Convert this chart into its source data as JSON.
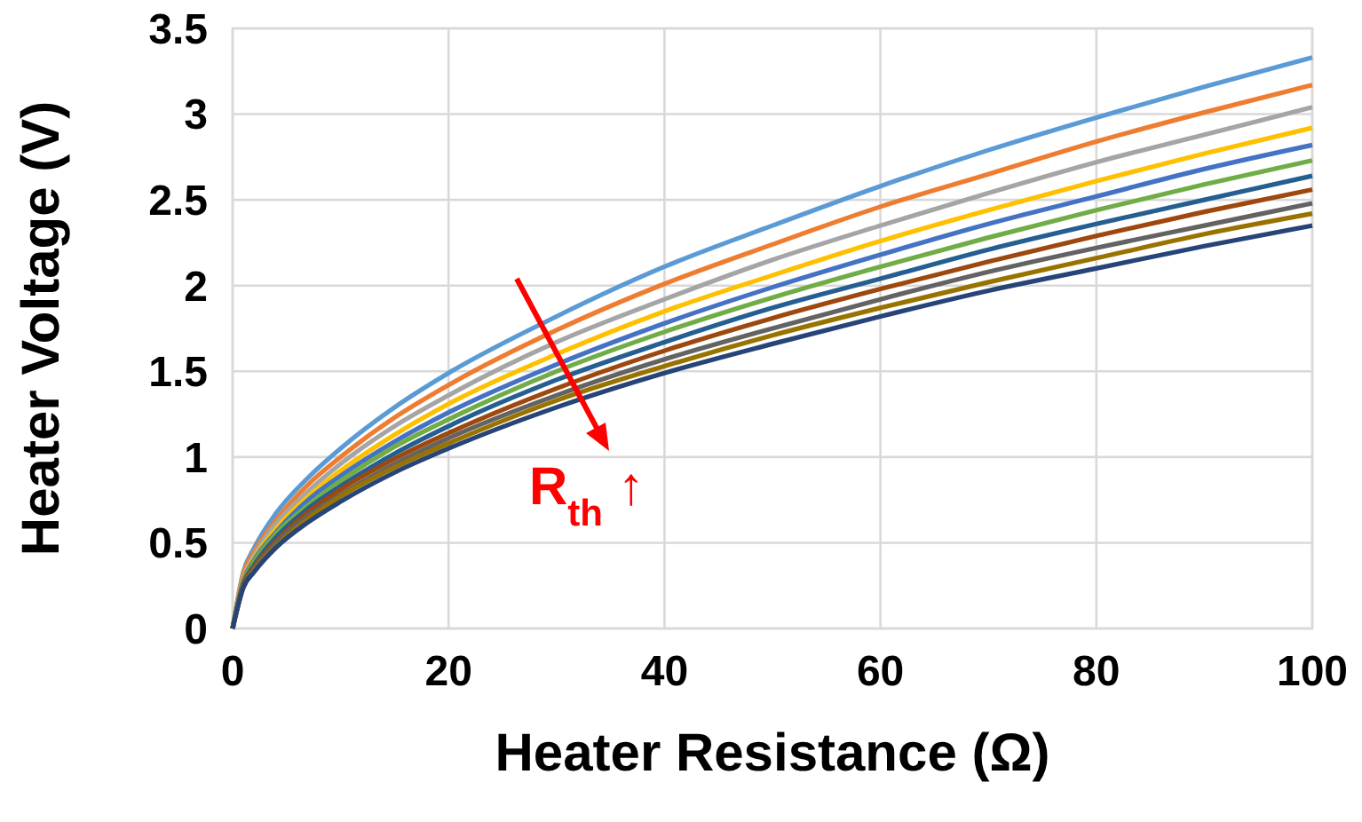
{
  "chart_data": {
    "type": "line",
    "xlabel": "Heater Resistance (Ω)",
    "ylabel": "Heater Voltage (V)",
    "x": [
      0,
      1,
      2,
      4,
      7,
      10,
      15,
      20,
      30,
      40,
      50,
      60,
      70,
      80,
      90,
      100
    ],
    "series": [
      {
        "color": "#5b9bd5",
        "values": [
          0,
          0.33,
          0.47,
          0.67,
          0.88,
          1.05,
          1.29,
          1.49,
          1.82,
          2.11,
          2.35,
          2.58,
          2.79,
          2.98,
          3.16,
          3.33
        ]
      },
      {
        "color": "#ed7d31",
        "values": [
          0,
          0.32,
          0.45,
          0.63,
          0.84,
          1.0,
          1.23,
          1.42,
          1.74,
          2.01,
          2.24,
          2.46,
          2.65,
          2.84,
          3.01,
          3.17
        ]
      },
      {
        "color": "#a5a5a5",
        "values": [
          0,
          0.3,
          0.43,
          0.61,
          0.8,
          0.96,
          1.18,
          1.36,
          1.67,
          1.92,
          2.15,
          2.35,
          2.54,
          2.72,
          2.88,
          3.04
        ]
      },
      {
        "color": "#ffc000",
        "values": [
          0,
          0.29,
          0.41,
          0.58,
          0.77,
          0.92,
          1.13,
          1.31,
          1.6,
          1.85,
          2.06,
          2.26,
          2.44,
          2.61,
          2.77,
          2.92
        ]
      },
      {
        "color": "#4472c4",
        "values": [
          0,
          0.28,
          0.4,
          0.56,
          0.75,
          0.89,
          1.09,
          1.26,
          1.54,
          1.78,
          1.99,
          2.18,
          2.36,
          2.52,
          2.68,
          2.82
        ]
      },
      {
        "color": "#70ad47",
        "values": [
          0,
          0.27,
          0.39,
          0.55,
          0.72,
          0.86,
          1.06,
          1.22,
          1.5,
          1.73,
          1.93,
          2.11,
          2.28,
          2.44,
          2.59,
          2.73
        ]
      },
      {
        "color": "#255e91",
        "values": [
          0,
          0.26,
          0.37,
          0.53,
          0.7,
          0.83,
          1.02,
          1.18,
          1.45,
          1.67,
          1.87,
          2.04,
          2.21,
          2.36,
          2.5,
          2.64
        ]
      },
      {
        "color": "#9e480e",
        "values": [
          0,
          0.26,
          0.36,
          0.51,
          0.68,
          0.81,
          0.99,
          1.14,
          1.4,
          1.62,
          1.81,
          1.98,
          2.14,
          2.29,
          2.43,
          2.56
        ]
      },
      {
        "color": "#636363",
        "values": [
          0,
          0.25,
          0.35,
          0.5,
          0.66,
          0.78,
          0.96,
          1.11,
          1.36,
          1.57,
          1.75,
          1.92,
          2.08,
          2.22,
          2.35,
          2.48
        ]
      },
      {
        "color": "#997300",
        "values": [
          0,
          0.24,
          0.34,
          0.48,
          0.64,
          0.77,
          0.94,
          1.08,
          1.33,
          1.53,
          1.71,
          1.87,
          2.02,
          2.16,
          2.3,
          2.42
        ]
      },
      {
        "color": "#264478",
        "values": [
          0,
          0.24,
          0.33,
          0.47,
          0.62,
          0.74,
          0.91,
          1.05,
          1.29,
          1.49,
          1.66,
          1.82,
          1.97,
          2.1,
          2.23,
          2.35
        ]
      }
    ],
    "xlim": [
      0,
      100
    ],
    "xticks": [
      0,
      20,
      40,
      60,
      80,
      100
    ],
    "ylim": [
      0,
      3.5
    ],
    "yticks": [
      0,
      0.5,
      1,
      1.5,
      2,
      2.5,
      3,
      3.5
    ],
    "grid": true,
    "marker": "none",
    "line_style": "solid",
    "annotations": [
      "R$_{th}$ ↑"
    ]
  }
}
